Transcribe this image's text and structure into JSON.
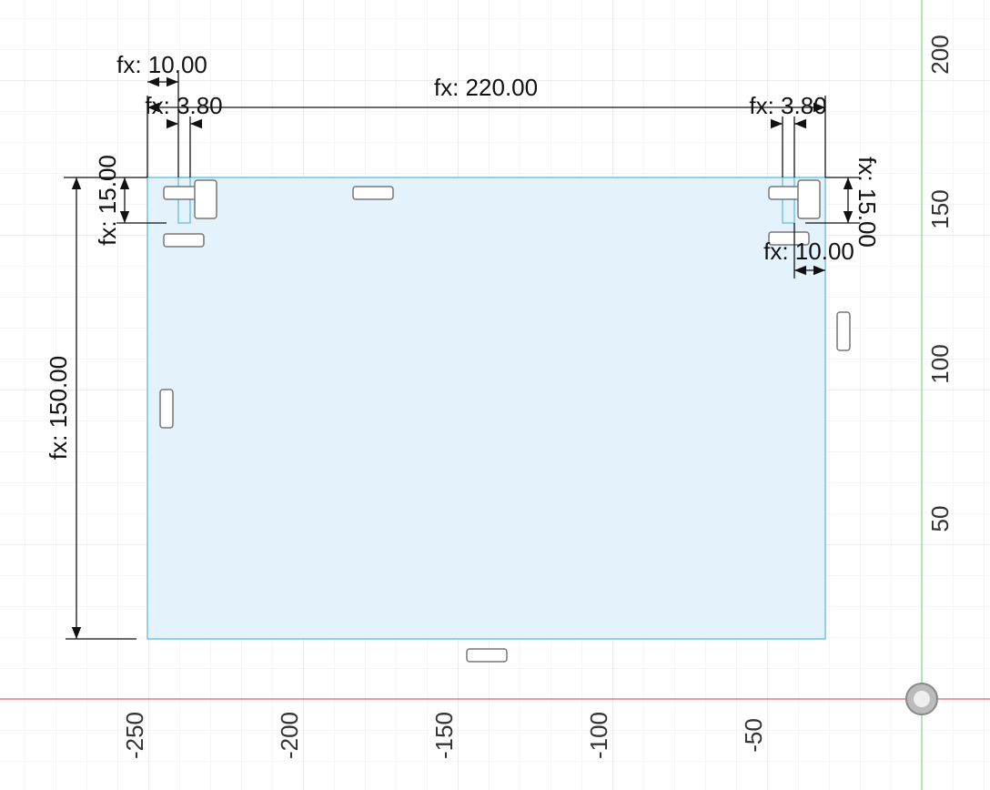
{
  "dimension_labels": [
    "fx: 10.00",
    "fx: 3.80",
    "fx: 220.00",
    "fx: 3.80",
    "fx: 15.00",
    "fx: 15.00",
    "fx: 10.00",
    "fx: 150.00"
  ],
  "axes": {
    "y_labels": [
      "200",
      "150",
      "100",
      "50"
    ],
    "x_labels": [
      "-250",
      "-200",
      "-150",
      "-100",
      "-50"
    ]
  }
}
